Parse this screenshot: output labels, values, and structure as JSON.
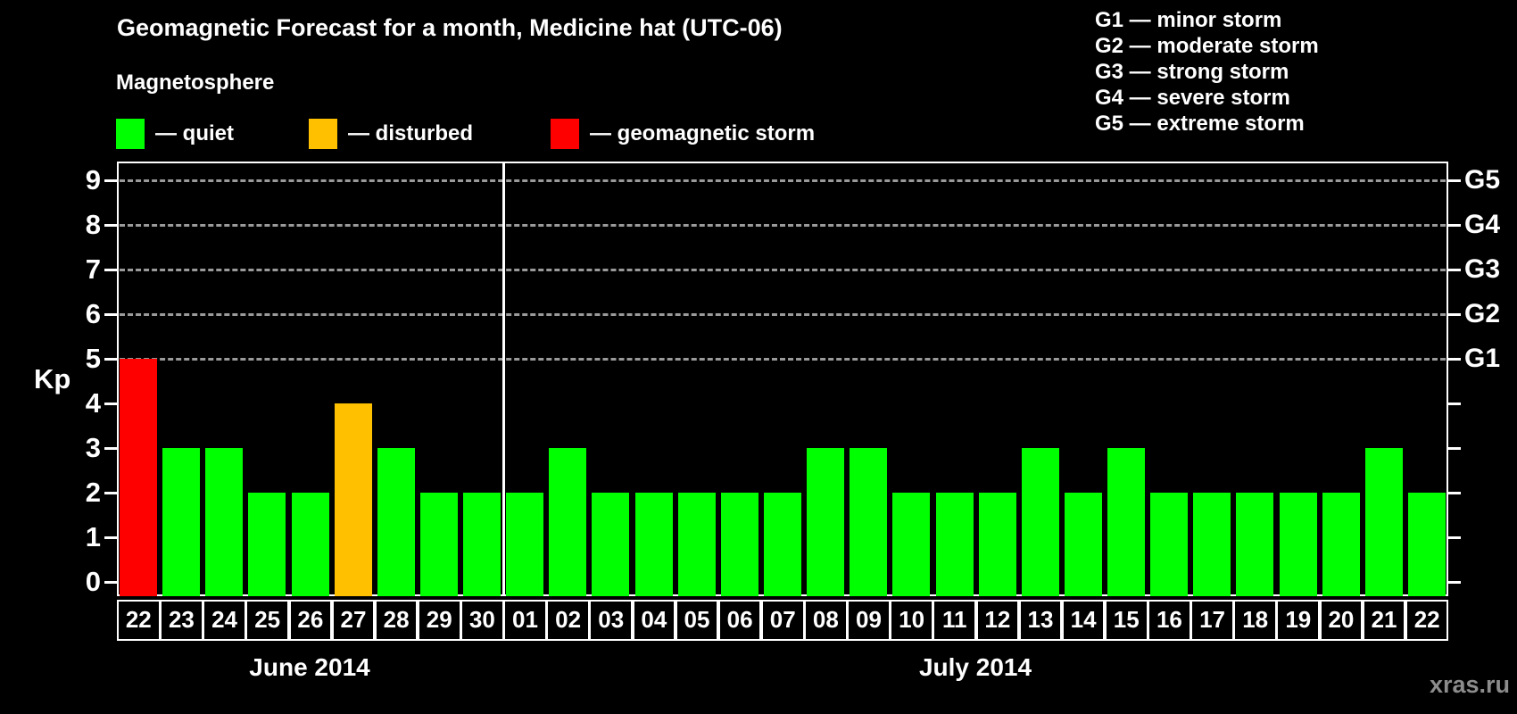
{
  "title": "Geomagnetic Forecast for a month, Medicine hat (UTC-06)",
  "watermark": "xras.ru",
  "g_scale_legend": {
    "items": [
      {
        "label": "G1 — minor storm"
      },
      {
        "label": "G2 — moderate storm"
      },
      {
        "label": "G3 — strong storm"
      },
      {
        "label": "G4 — severe storm"
      },
      {
        "label": "G5 — extreme storm"
      }
    ]
  },
  "legend": {
    "heading": "Magnetosphere",
    "items": [
      {
        "state": "quiet",
        "label": "— quiet",
        "color": "#00ff00"
      },
      {
        "state": "disturbed",
        "label": "— disturbed",
        "color": "#ffc000"
      },
      {
        "state": "storm",
        "label": "— geomagnetic storm",
        "color": "#ff0000"
      }
    ]
  },
  "axes": {
    "y_label": "Kp",
    "y_ticks": [
      "0",
      "1",
      "2",
      "3",
      "4",
      "5",
      "6",
      "7",
      "8",
      "9"
    ],
    "right_tick_labels": [
      {
        "label": "G1",
        "kp": 5
      },
      {
        "label": "G2",
        "kp": 6
      },
      {
        "label": "G3",
        "kp": 7
      },
      {
        "label": "G4",
        "kp": 8
      },
      {
        "label": "G5",
        "kp": 9
      }
    ],
    "months": [
      {
        "label": "June 2014",
        "days": 9
      },
      {
        "label": "July 2014",
        "days": 22
      }
    ]
  },
  "chart_data": {
    "type": "bar",
    "title": "Geomagnetic Forecast for a month, Medicine hat (UTC-06)",
    "ylabel": "Kp",
    "ylim": [
      0,
      9.4
    ],
    "grid": "dashed horizontal at Kp 5-9",
    "grid_kp_levels": [
      5,
      6,
      7,
      8,
      9
    ],
    "colors": {
      "quiet": "#00ff00",
      "disturbed": "#ffc000",
      "storm": "#ff0000"
    },
    "points": [
      {
        "month": "June 2014",
        "day": "22",
        "kp": 5,
        "state": "storm"
      },
      {
        "month": "June 2014",
        "day": "23",
        "kp": 3,
        "state": "quiet"
      },
      {
        "month": "June 2014",
        "day": "24",
        "kp": 3,
        "state": "quiet"
      },
      {
        "month": "June 2014",
        "day": "25",
        "kp": 2,
        "state": "quiet"
      },
      {
        "month": "June 2014",
        "day": "26",
        "kp": 2,
        "state": "quiet"
      },
      {
        "month": "June 2014",
        "day": "27",
        "kp": 4,
        "state": "disturbed"
      },
      {
        "month": "June 2014",
        "day": "28",
        "kp": 3,
        "state": "quiet"
      },
      {
        "month": "June 2014",
        "day": "29",
        "kp": 2,
        "state": "quiet"
      },
      {
        "month": "June 2014",
        "day": "30",
        "kp": 2,
        "state": "quiet"
      },
      {
        "month": "July 2014",
        "day": "01",
        "kp": 2,
        "state": "quiet"
      },
      {
        "month": "July 2014",
        "day": "02",
        "kp": 3,
        "state": "quiet"
      },
      {
        "month": "July 2014",
        "day": "03",
        "kp": 2,
        "state": "quiet"
      },
      {
        "month": "July 2014",
        "day": "04",
        "kp": 2,
        "state": "quiet"
      },
      {
        "month": "July 2014",
        "day": "05",
        "kp": 2,
        "state": "quiet"
      },
      {
        "month": "July 2014",
        "day": "06",
        "kp": 2,
        "state": "quiet"
      },
      {
        "month": "July 2014",
        "day": "07",
        "kp": 2,
        "state": "quiet"
      },
      {
        "month": "July 2014",
        "day": "08",
        "kp": 3,
        "state": "quiet"
      },
      {
        "month": "July 2014",
        "day": "09",
        "kp": 3,
        "state": "quiet"
      },
      {
        "month": "July 2014",
        "day": "10",
        "kp": 2,
        "state": "quiet"
      },
      {
        "month": "July 2014",
        "day": "11",
        "kp": 2,
        "state": "quiet"
      },
      {
        "month": "July 2014",
        "day": "12",
        "kp": 2,
        "state": "quiet"
      },
      {
        "month": "July 2014",
        "day": "13",
        "kp": 3,
        "state": "quiet"
      },
      {
        "month": "July 2014",
        "day": "14",
        "kp": 2,
        "state": "quiet"
      },
      {
        "month": "July 2014",
        "day": "15",
        "kp": 3,
        "state": "quiet"
      },
      {
        "month": "July 2014",
        "day": "16",
        "kp": 2,
        "state": "quiet"
      },
      {
        "month": "July 2014",
        "day": "17",
        "kp": 2,
        "state": "quiet"
      },
      {
        "month": "July 2014",
        "day": "18",
        "kp": 2,
        "state": "quiet"
      },
      {
        "month": "July 2014",
        "day": "19",
        "kp": 2,
        "state": "quiet"
      },
      {
        "month": "July 2014",
        "day": "20",
        "kp": 2,
        "state": "quiet"
      },
      {
        "month": "July 2014",
        "day": "21",
        "kp": 3,
        "state": "quiet"
      },
      {
        "month": "July 2014",
        "day": "22",
        "kp": 2,
        "state": "quiet"
      }
    ]
  }
}
